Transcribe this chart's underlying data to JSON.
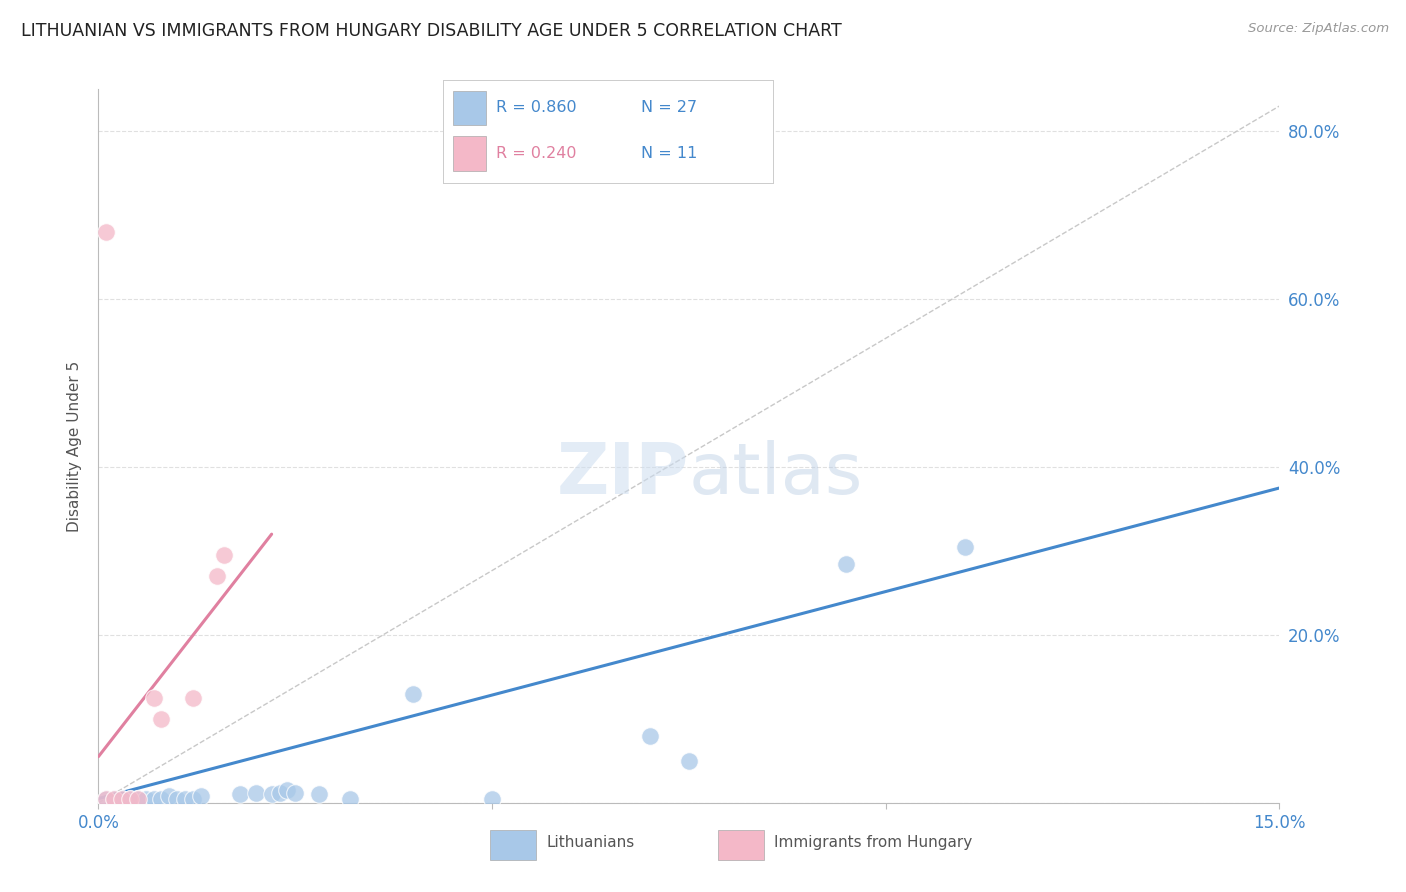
{
  "title": "LITHUANIAN VS IMMIGRANTS FROM HUNGARY DISABILITY AGE UNDER 5 CORRELATION CHART",
  "source": "Source: ZipAtlas.com",
  "ylabel": "Disability Age Under 5",
  "right_yticks": [
    0.0,
    0.2,
    0.4,
    0.6,
    0.8
  ],
  "right_yticklabels": [
    "",
    "20.0%",
    "40.0%",
    "60.0%",
    "80.0%"
  ],
  "xlim": [
    0.0,
    0.15
  ],
  "ylim": [
    0.0,
    0.85
  ],
  "legend_blue_r": "R = 0.860",
  "legend_blue_n": "N = 27",
  "legend_pink_r": "R = 0.240",
  "legend_pink_n": "N = 11",
  "legend_label_blue": "Lithuanians",
  "legend_label_pink": "Immigrants from Hungary",
  "blue_color": "#a8c8e8",
  "pink_color": "#f4b8c8",
  "blue_line_color": "#4488cc",
  "pink_line_color": "#e080a0",
  "diag_line_color": "#c8c8c8",
  "background_color": "#ffffff",
  "grid_color": "#e0e0e0",
  "title_color": "#222222",
  "right_axis_color": "#4488cc",
  "bottom_label_color": "#555555",
  "scatter_blue": [
    [
      0.001,
      0.005
    ],
    [
      0.002,
      0.005
    ],
    [
      0.003,
      0.005
    ],
    [
      0.004,
      0.005
    ],
    [
      0.005,
      0.005
    ],
    [
      0.006,
      0.005
    ],
    [
      0.007,
      0.005
    ],
    [
      0.008,
      0.005
    ],
    [
      0.009,
      0.008
    ],
    [
      0.01,
      0.005
    ],
    [
      0.011,
      0.005
    ],
    [
      0.012,
      0.005
    ],
    [
      0.013,
      0.008
    ],
    [
      0.018,
      0.01
    ],
    [
      0.02,
      0.012
    ],
    [
      0.022,
      0.01
    ],
    [
      0.023,
      0.012
    ],
    [
      0.024,
      0.015
    ],
    [
      0.025,
      0.012
    ],
    [
      0.028,
      0.01
    ],
    [
      0.032,
      0.005
    ],
    [
      0.04,
      0.13
    ],
    [
      0.05,
      0.005
    ],
    [
      0.07,
      0.08
    ],
    [
      0.075,
      0.05
    ],
    [
      0.095,
      0.285
    ],
    [
      0.11,
      0.305
    ]
  ],
  "scatter_pink": [
    [
      0.001,
      0.005
    ],
    [
      0.002,
      0.005
    ],
    [
      0.003,
      0.005
    ],
    [
      0.004,
      0.005
    ],
    [
      0.005,
      0.005
    ],
    [
      0.007,
      0.125
    ],
    [
      0.008,
      0.1
    ],
    [
      0.015,
      0.27
    ],
    [
      0.016,
      0.295
    ],
    [
      0.001,
      0.68
    ],
    [
      0.012,
      0.125
    ]
  ],
  "blue_line_x": [
    0.0,
    0.15
  ],
  "blue_line_y": [
    0.005,
    0.375
  ],
  "pink_line_x": [
    0.0,
    0.022
  ],
  "pink_line_y": [
    0.055,
    0.32
  ],
  "diag_line_x": [
    0.0,
    0.15
  ],
  "diag_line_y": [
    0.0,
    0.83
  ]
}
